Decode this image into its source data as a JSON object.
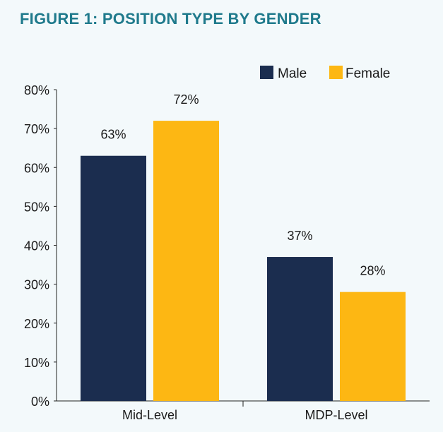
{
  "chart_data": {
    "type": "bar",
    "title": "FIGURE 1: POSITION TYPE BY GENDER",
    "categories": [
      "Mid-Level",
      "MDP-Level"
    ],
    "series": [
      {
        "name": "Male",
        "color": "#1b2d4f",
        "values": [
          63,
          37
        ],
        "labels": [
          "63%",
          "37%"
        ]
      },
      {
        "name": "Female",
        "color": "#fdb713",
        "values": [
          72,
          28
        ],
        "labels": [
          "72%",
          "28%"
        ]
      }
    ],
    "ylim": [
      0,
      80
    ],
    "yticks": [
      0,
      10,
      20,
      30,
      40,
      50,
      60,
      70,
      80
    ],
    "ytick_labels": [
      "0%",
      "10%",
      "20%",
      "30%",
      "40%",
      "50%",
      "60%",
      "70%",
      "80%"
    ],
    "xlabel": "",
    "ylabel": "",
    "grid": false,
    "legend": "top-right"
  }
}
